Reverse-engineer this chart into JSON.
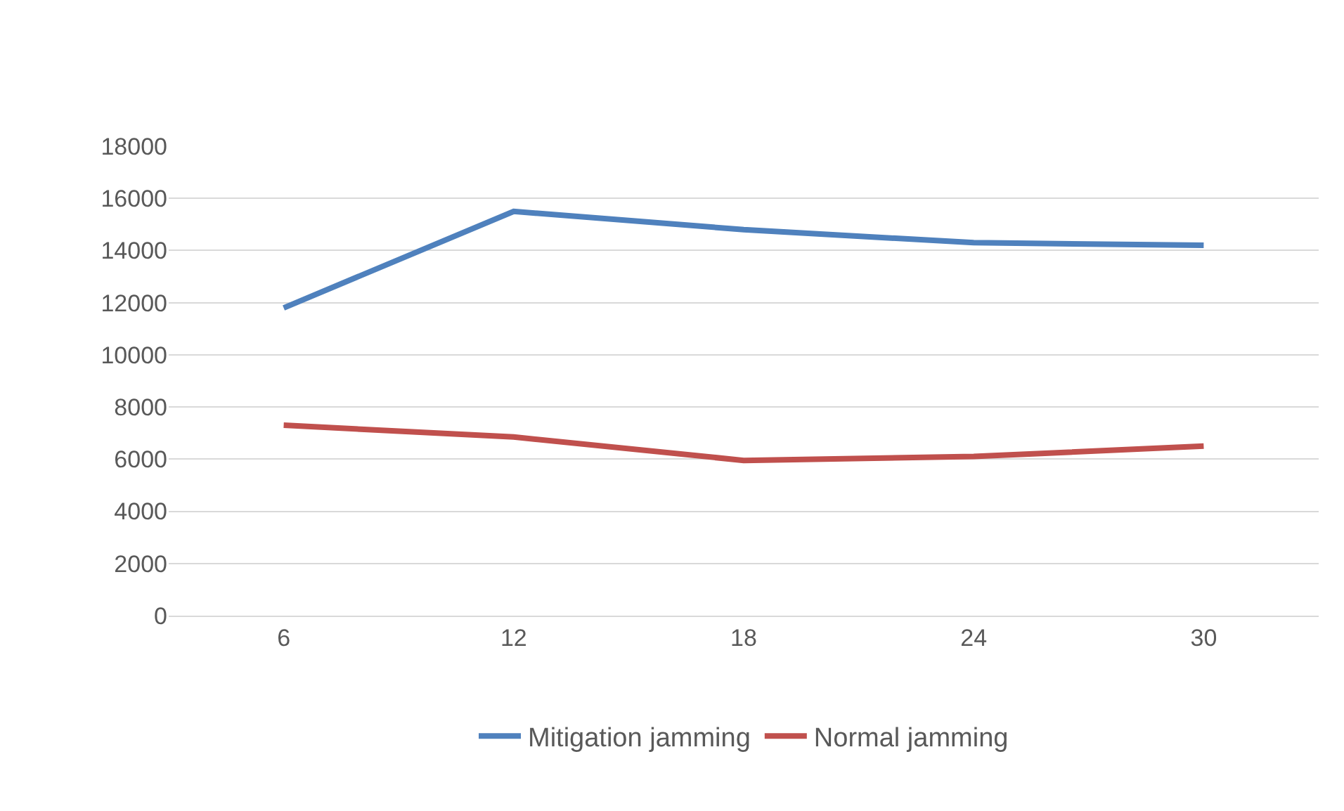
{
  "chart_data": {
    "type": "line",
    "categories": [
      "6",
      "12",
      "18",
      "24",
      "30"
    ],
    "series": [
      {
        "name": "Mitigation jamming",
        "color": "#4f81bd",
        "values": [
          11800,
          15500,
          14800,
          14300,
          14200
        ]
      },
      {
        "name": "Normal jamming",
        "color": "#c0504d",
        "values": [
          7300,
          6850,
          5950,
          6100,
          6500
        ]
      }
    ],
    "ylim": [
      0,
      18000
    ],
    "yticks": [
      0,
      2000,
      4000,
      6000,
      8000,
      10000,
      12000,
      14000,
      16000,
      18000
    ],
    "grid": "y",
    "legend": "bottom",
    "marker": "none",
    "line_style": "solid"
  }
}
